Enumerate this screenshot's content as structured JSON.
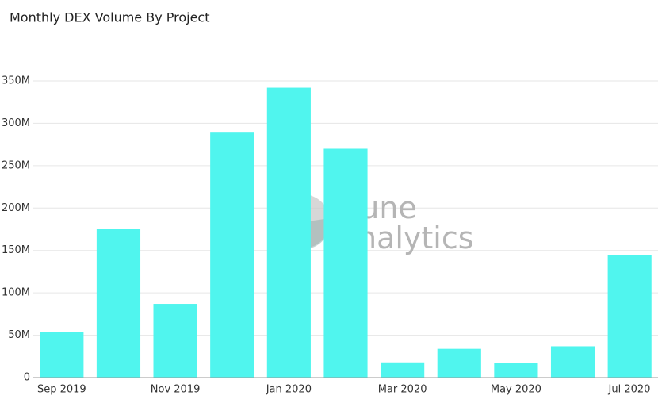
{
  "chart_data": {
    "type": "bar",
    "title": "Monthly DEX Volume By Project",
    "watermark": [
      "Dune",
      "Analytics"
    ],
    "categories": [
      "Sep 2019",
      null,
      "Nov 2019",
      null,
      "Jan 2020",
      null,
      "Mar 2020",
      null,
      "May 2020",
      null,
      "Jul 2020"
    ],
    "values": [
      54000000,
      175000000,
      87000000,
      289000000,
      342000000,
      270000000,
      18000000,
      34000000,
      17000000,
      37000000,
      145000000
    ],
    "color": "#50f5ee",
    "ylim": [
      0,
      350000000
    ],
    "yticks": [
      0,
      {
        "value": 50000000,
        "label": "50M"
      },
      {
        "value": 100000000,
        "label": "100M"
      },
      {
        "value": 150000000,
        "label": "150M"
      },
      {
        "value": 200000000,
        "label": "200M"
      },
      {
        "value": 250000000,
        "label": "250M"
      },
      {
        "value": 300000000,
        "label": "300M"
      },
      {
        "value": 350000000,
        "label": "350M"
      }
    ],
    "grid": true
  }
}
